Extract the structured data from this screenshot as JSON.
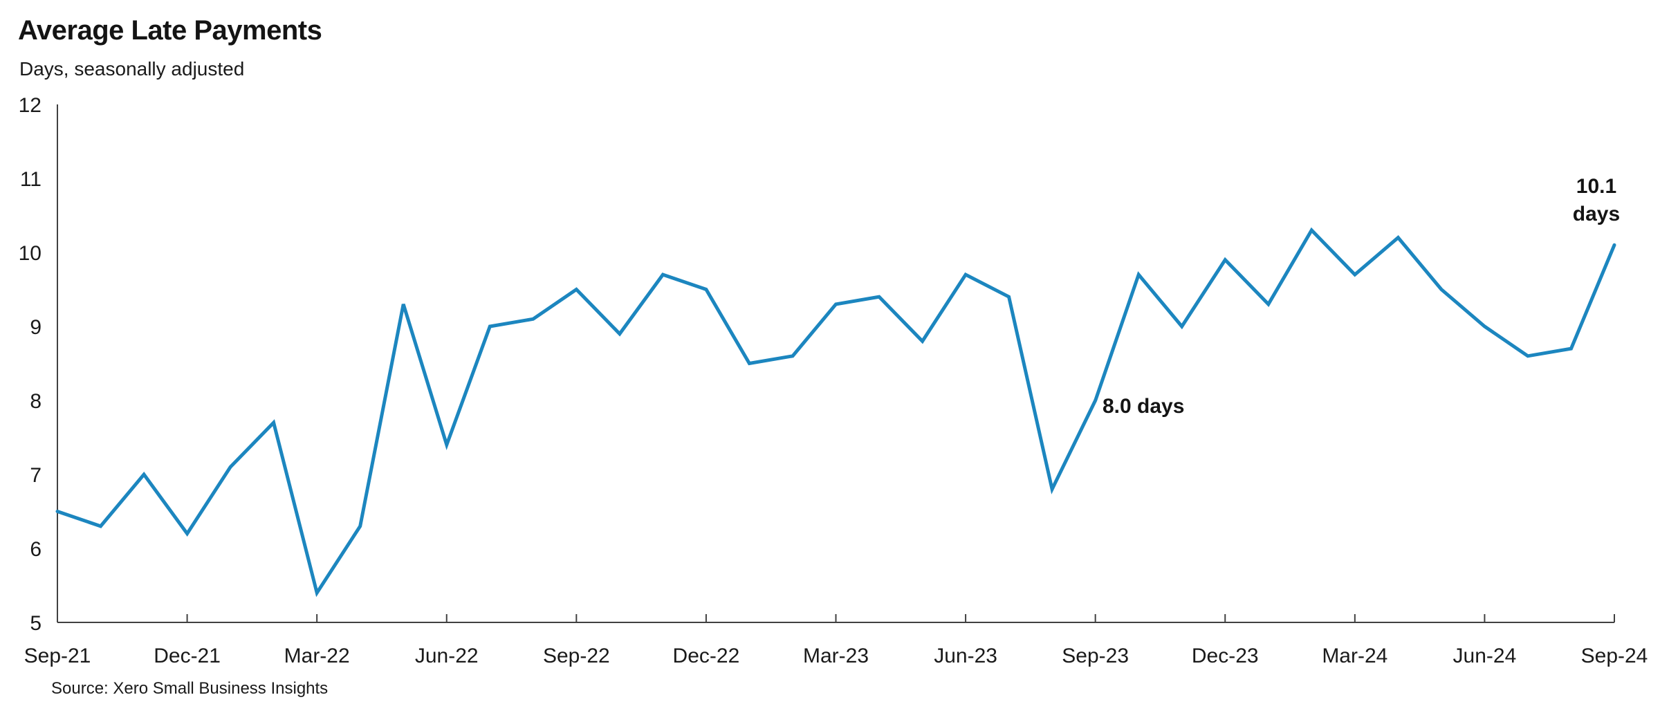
{
  "page": {
    "title": "Average Late Payments",
    "subtitle": "Days, seasonally adjusted",
    "source": "Source: Xero Small Business Insights"
  },
  "annotations": {
    "sep23_label": "8.0 days",
    "sep24_label_line1": "10.1",
    "sep24_label_line2": "days"
  },
  "colors": {
    "line": "#1C86BF",
    "axis": "#404040",
    "text": "#1A1A1A"
  },
  "chart_data": {
    "type": "line",
    "title": "Average Late Payments",
    "ylabel": "Days, seasonally adjusted",
    "source": "Source: Xero Small Business Insights",
    "x": [
      "Sep-21",
      "Oct-21",
      "Nov-21",
      "Dec-21",
      "Jan-22",
      "Feb-22",
      "Mar-22",
      "Apr-22",
      "May-22",
      "Jun-22",
      "Jul-22",
      "Aug-22",
      "Sep-22",
      "Oct-22",
      "Nov-22",
      "Dec-22",
      "Jan-23",
      "Feb-23",
      "Mar-23",
      "Apr-23",
      "May-23",
      "Jun-23",
      "Jul-23",
      "Aug-23",
      "Sep-23",
      "Oct-23",
      "Nov-23",
      "Dec-23",
      "Jan-24",
      "Feb-24",
      "Mar-24",
      "Apr-24",
      "May-24",
      "Jun-24",
      "Jul-24",
      "Aug-24",
      "Sep-24"
    ],
    "values": [
      6.5,
      6.3,
      7.0,
      6.2,
      7.1,
      7.7,
      5.4,
      6.3,
      9.3,
      7.4,
      9.0,
      9.1,
      9.5,
      8.9,
      9.7,
      9.5,
      8.5,
      8.6,
      9.3,
      9.4,
      8.8,
      9.7,
      9.4,
      6.8,
      8.0,
      9.7,
      9.0,
      9.9,
      9.3,
      10.3,
      9.7,
      10.2,
      9.5,
      9.0,
      8.6,
      8.7,
      10.1
    ],
    "x_tick_labels": [
      "Sep-21",
      "Dec-21",
      "Mar-22",
      "Jun-22",
      "Sep-22",
      "Dec-22",
      "Mar-23",
      "Jun-23",
      "Sep-23",
      "Dec-23",
      "Mar-24",
      "Jun-24",
      "Sep-24"
    ],
    "x_tick_every": 3,
    "yticks": [
      5,
      6,
      7,
      8,
      9,
      10,
      11,
      12
    ],
    "ylim": [
      5,
      12
    ],
    "grid": false,
    "legend": false,
    "annotations": [
      {
        "x": "Sep-23",
        "value": 8.0,
        "text": "8.0 days"
      },
      {
        "x": "Sep-24",
        "value": 10.1,
        "text": "10.1 days"
      }
    ]
  }
}
